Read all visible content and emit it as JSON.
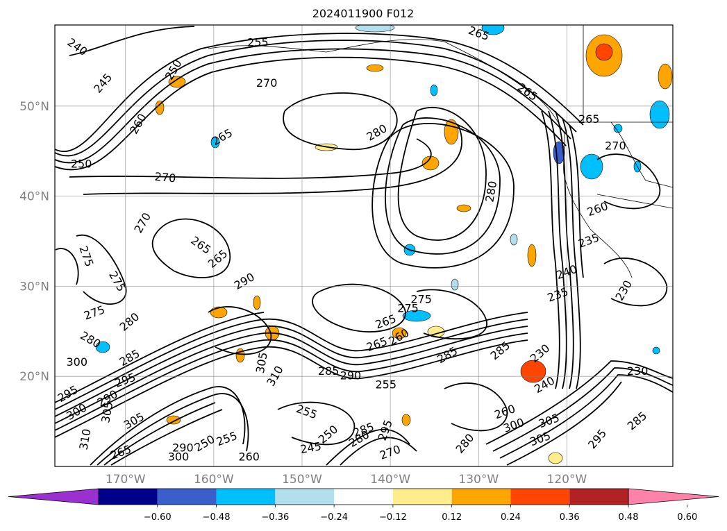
{
  "title": "2024011900 F012",
  "map": {
    "lat_ticks": [
      "50°N",
      "40°N",
      "30°N",
      "20°N"
    ],
    "lon_ticks": [
      "170°W",
      "160°W",
      "150°W",
      "140°W",
      "130°W",
      "120°W"
    ],
    "lat_range": [
      10,
      59
    ],
    "lon_range": [
      -178,
      -108
    ],
    "grid": true,
    "contour_field": "black contours",
    "shaded_field": "filled color contours"
  },
  "contour_labels": [
    {
      "text": "240",
      "lon": -175.5,
      "lat": 56.5,
      "rot": 35
    },
    {
      "text": "245",
      "lon": -172.5,
      "lat": 52.5,
      "rot": -50
    },
    {
      "text": "260",
      "lon": -168.5,
      "lat": 48.0,
      "rot": -60
    },
    {
      "text": "250",
      "lon": -175.0,
      "lat": 43.5,
      "rot": 0
    },
    {
      "text": "270",
      "lon": -165.5,
      "lat": 42.0,
      "rot": 5
    },
    {
      "text": "270",
      "lon": -168.0,
      "lat": 37.0,
      "rot": -60
    },
    {
      "text": "275",
      "lon": -174.5,
      "lat": 33.3,
      "rot": 70
    },
    {
      "text": "275",
      "lon": -171.0,
      "lat": 30.5,
      "rot": 60
    },
    {
      "text": "275",
      "lon": -173.5,
      "lat": 27.0,
      "rot": -20
    },
    {
      "text": "280",
      "lon": -174.0,
      "lat": 24.0,
      "rot": 30
    },
    {
      "text": "280",
      "lon": -169.5,
      "lat": 26.0,
      "rot": -40
    },
    {
      "text": "265",
      "lon": -159.0,
      "lat": 46.5,
      "rot": -30
    },
    {
      "text": "270",
      "lon": -154.0,
      "lat": 52.5,
      "rot": 0
    },
    {
      "text": "255",
      "lon": -155.0,
      "lat": 57.0,
      "rot": 0
    },
    {
      "text": "250",
      "lon": -164.5,
      "lat": 54.0,
      "rot": -60
    },
    {
      "text": "265",
      "lon": -130.0,
      "lat": 58.0,
      "rot": 20
    },
    {
      "text": "265",
      "lon": -124.5,
      "lat": 51.5,
      "rot": 35
    },
    {
      "text": "280",
      "lon": -141.5,
      "lat": 47.0,
      "rot": -30
    },
    {
      "text": "280",
      "lon": -128.5,
      "lat": 40.5,
      "rot": -80
    },
    {
      "text": "265",
      "lon": -117.5,
      "lat": 48.5,
      "rot": 0
    },
    {
      "text": "270",
      "lon": -114.5,
      "lat": 45.5,
      "rot": 0
    },
    {
      "text": "260",
      "lon": -116.5,
      "lat": 38.5,
      "rot": -20
    },
    {
      "text": "235",
      "lon": -117.5,
      "lat": 35.0,
      "rot": -20
    },
    {
      "text": "240",
      "lon": -120.0,
      "lat": 31.5,
      "rot": -20
    },
    {
      "text": "235",
      "lon": -121.0,
      "lat": 29.0,
      "rot": -20
    },
    {
      "text": "230",
      "lon": -113.5,
      "lat": 29.5,
      "rot": -60
    },
    {
      "text": "265",
      "lon": -161.5,
      "lat": 34.5,
      "rot": 35
    },
    {
      "text": "290",
      "lon": -156.5,
      "lat": 30.5,
      "rot": -30
    },
    {
      "text": "265",
      "lon": -159.5,
      "lat": 33.0,
      "rot": -40
    },
    {
      "text": "275",
      "lon": -138.0,
      "lat": 27.5,
      "rot": 0
    },
    {
      "text": "275",
      "lon": -136.5,
      "lat": 28.5,
      "rot": 0
    },
    {
      "text": "265",
      "lon": -140.5,
      "lat": 26.0,
      "rot": -20
    },
    {
      "text": "260",
      "lon": -139.0,
      "lat": 24.3,
      "rot": -30
    },
    {
      "text": "265",
      "lon": -141.5,
      "lat": 23.5,
      "rot": -20
    },
    {
      "text": "285",
      "lon": -133.5,
      "lat": 22.3,
      "rot": -30
    },
    {
      "text": "285",
      "lon": -127.5,
      "lat": 22.8,
      "rot": -40
    },
    {
      "text": "230",
      "lon": -123.0,
      "lat": 22.5,
      "rot": -40
    },
    {
      "text": "230",
      "lon": -112.0,
      "lat": 20.5,
      "rot": 0
    },
    {
      "text": "290",
      "lon": -144.5,
      "lat": 20.0,
      "rot": 0
    },
    {
      "text": "285",
      "lon": -147.0,
      "lat": 20.5,
      "rot": 0
    },
    {
      "text": "255",
      "lon": -140.5,
      "lat": 19.0,
      "rot": 0
    },
    {
      "text": "255",
      "lon": -149.5,
      "lat": 16.0,
      "rot": 20
    },
    {
      "text": "240",
      "lon": -122.5,
      "lat": 19.0,
      "rot": -30
    },
    {
      "text": "260",
      "lon": -127.0,
      "lat": 16.0,
      "rot": -20
    },
    {
      "text": "300",
      "lon": -126.0,
      "lat": 14.5,
      "rot": -20
    },
    {
      "text": "305",
      "lon": -122.0,
      "lat": 15.0,
      "rot": -20
    },
    {
      "text": "305",
      "lon": -123.0,
      "lat": 13.0,
      "rot": -20
    },
    {
      "text": "285",
      "lon": -112.0,
      "lat": 15.0,
      "rot": -40
    },
    {
      "text": "295",
      "lon": -116.5,
      "lat": 13.0,
      "rot": -50
    },
    {
      "text": "280",
      "lon": -131.5,
      "lat": 12.5,
      "rot": -50
    },
    {
      "text": "305",
      "lon": -154.5,
      "lat": 21.5,
      "rot": -80
    },
    {
      "text": "310",
      "lon": -153.0,
      "lat": 20.0,
      "rot": -60
    },
    {
      "text": "300",
      "lon": -175.5,
      "lat": 21.5,
      "rot": 0
    },
    {
      "text": "285",
      "lon": -169.5,
      "lat": 22.0,
      "rot": -30
    },
    {
      "text": "295",
      "lon": -176.5,
      "lat": 18.0,
      "rot": -30
    },
    {
      "text": "295",
      "lon": -170.0,
      "lat": 19.5,
      "rot": -20
    },
    {
      "text": "290",
      "lon": -172.0,
      "lat": 17.5,
      "rot": -30
    },
    {
      "text": "300",
      "lon": -175.5,
      "lat": 16.0,
      "rot": -30
    },
    {
      "text": "305",
      "lon": -172.0,
      "lat": 16.0,
      "rot": -80
    },
    {
      "text": "305",
      "lon": -169.0,
      "lat": 15.0,
      "rot": -30
    },
    {
      "text": "310",
      "lon": -174.5,
      "lat": 13.0,
      "rot": -80
    },
    {
      "text": "250",
      "lon": -161.0,
      "lat": 12.5,
      "rot": -30
    },
    {
      "text": "255",
      "lon": -158.5,
      "lat": 13.0,
      "rot": -20
    },
    {
      "text": "250",
      "lon": -147.0,
      "lat": 13.5,
      "rot": -40
    },
    {
      "text": "245",
      "lon": -149.0,
      "lat": 12.0,
      "rot": -10
    },
    {
      "text": "260",
      "lon": -156.0,
      "lat": 11.0,
      "rot": 0
    },
    {
      "text": "290",
      "lon": -163.5,
      "lat": 12.0,
      "rot": 0
    },
    {
      "text": "300",
      "lon": -164.0,
      "lat": 11.0,
      "rot": 0
    },
    {
      "text": "265",
      "lon": -170.5,
      "lat": 11.5,
      "rot": -20
    },
    {
      "text": "270",
      "lon": -140.0,
      "lat": 11.5,
      "rot": -20
    },
    {
      "text": "295",
      "lon": -140.5,
      "lat": 14.0,
      "rot": -70
    },
    {
      "text": "285",
      "lon": -143.0,
      "lat": 14.0,
      "rot": -20
    },
    {
      "text": "280",
      "lon": -143.5,
      "lat": 13.0,
      "rot": -30
    }
  ],
  "colorbar": {
    "ticks": [
      "−0.60",
      "−0.48",
      "−0.36",
      "−0.24",
      "−0.12",
      "0.12",
      "0.24",
      "0.36",
      "0.48",
      "0.60"
    ],
    "colors": [
      "#9b30d0",
      "#00008b",
      "#3a5fcd",
      "#00bfff",
      "#b2dfee",
      "#ffffff",
      "#ffec8b",
      "#ffa500",
      "#ff4500",
      "#b22222",
      "#ff82ab"
    ]
  },
  "shading": {
    "cold_colors": [
      "#00bfff",
      "#b2dfee",
      "#3a5fcd"
    ],
    "warm_colors": [
      "#ffec8b",
      "#ffa500",
      "#ff4500"
    ]
  }
}
